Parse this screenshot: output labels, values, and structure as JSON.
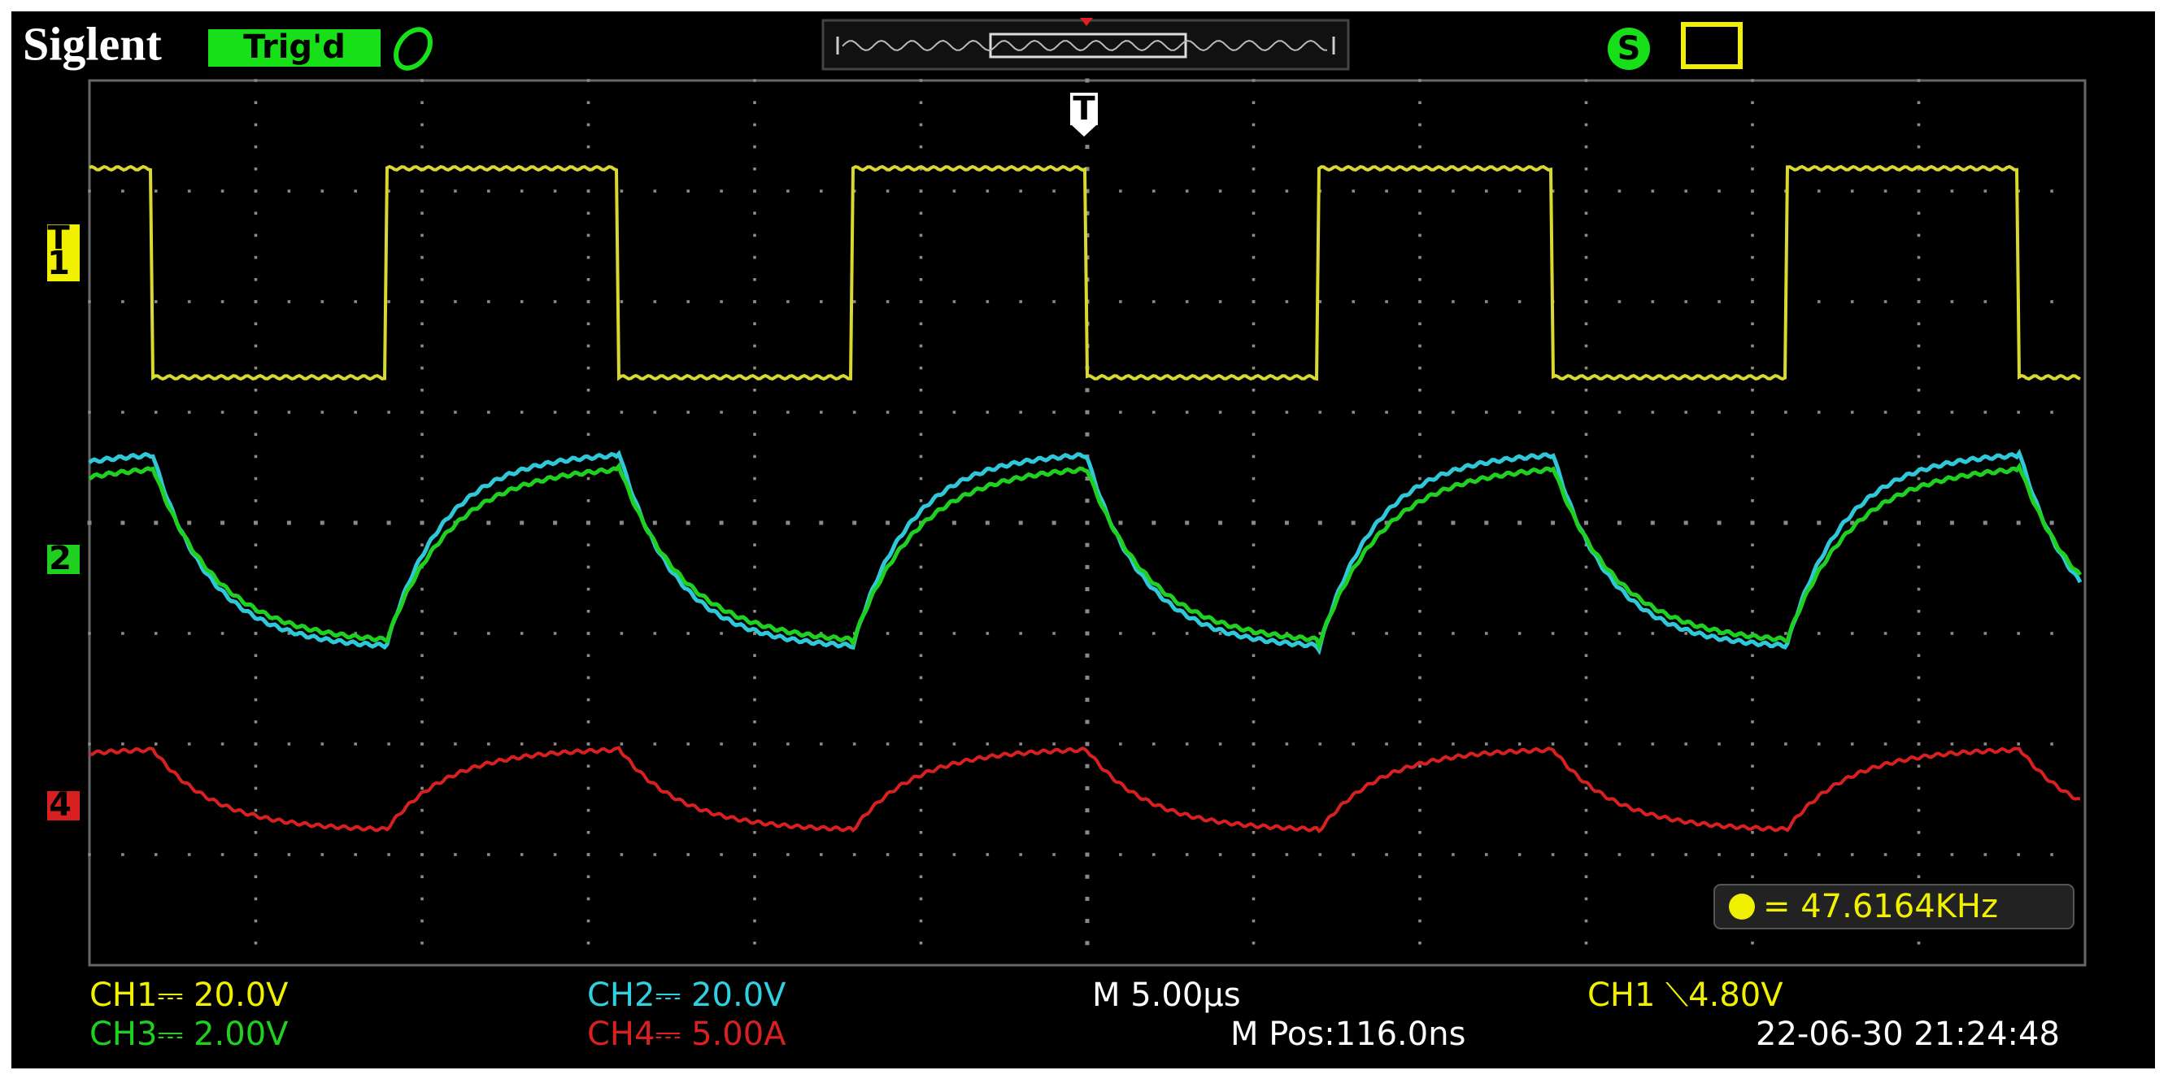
{
  "header": {
    "brand": "Siglent",
    "status": "Trig'd"
  },
  "trigger_marker": "T",
  "trigger_level_marker": "T",
  "channel_markers": [
    "1",
    "2",
    "4"
  ],
  "measurement": "= 47.6164KHz",
  "footer": {
    "ch1": "CH1⎓ 20.0V",
    "ch2": "CH2⎓ 20.0V",
    "timebase": "M 5.00µs",
    "trigger": "CH1 ⟍4.80V",
    "ch3": "CH3⎓ 2.00V",
    "ch4": "CH4⎓ 5.00A",
    "position": "M Pos:116.0ns",
    "datetime": "22-06-30 21:24:48"
  }
}
